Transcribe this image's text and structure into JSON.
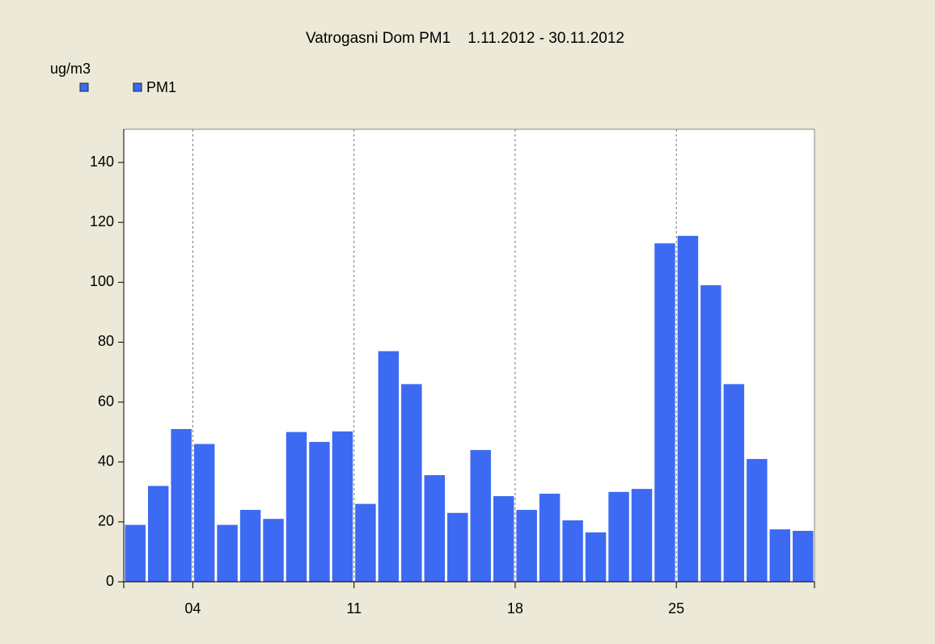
{
  "chart_data": {
    "type": "bar",
    "title": "Vatrogasni Dom PM1    1.11.2012 - 30.11.2012",
    "y_label": "ug/m3",
    "categories": [
      null,
      null,
      null,
      "04",
      null,
      null,
      null,
      null,
      null,
      null,
      "11",
      null,
      null,
      null,
      null,
      null,
      null,
      "18",
      null,
      null,
      null,
      null,
      null,
      null,
      "25",
      null,
      null,
      null,
      null,
      null
    ],
    "series": [
      {
        "name": "PM1",
        "color": "#3d6af2",
        "values": [
          19,
          32,
          51,
          46,
          19,
          24,
          21,
          50,
          46.7,
          50.2,
          26,
          77,
          66,
          35.6,
          23,
          44,
          28.6,
          24,
          29.4,
          20.5,
          16.5,
          30,
          31,
          113,
          115.5,
          99,
          66,
          41,
          17.5,
          17
        ]
      }
    ],
    "ylim": [
      0,
      150
    ],
    "yticks": [
      0,
      20,
      40,
      60,
      80,
      100,
      120,
      140
    ],
    "grid": "x",
    "legend": "top-left"
  }
}
